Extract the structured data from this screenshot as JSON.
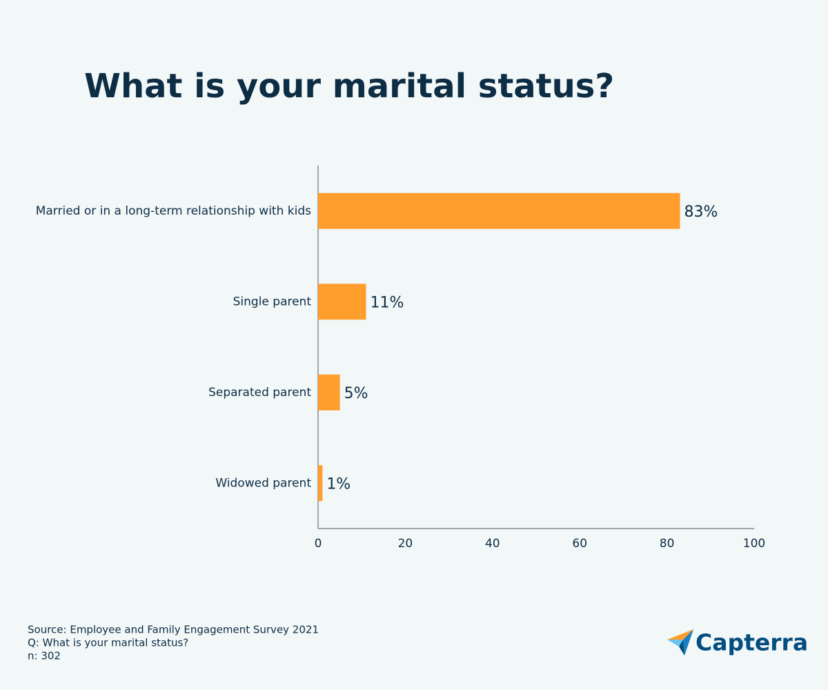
{
  "chart_data": {
    "type": "hbar",
    "title": "What is your marital status?",
    "categories": [
      "Married or in a long-term relationship with kids",
      "Single parent",
      "Separated parent",
      "Widowed parent"
    ],
    "values": [
      83,
      11,
      5,
      1
    ],
    "value_labels": [
      "83%",
      "11%",
      "5%",
      "1%"
    ],
    "color": "#ff9e2d",
    "xlim": [
      0,
      100
    ],
    "xticks": [
      0,
      20,
      40,
      60,
      80,
      100
    ],
    "grid": false,
    "notes": [
      "Source: Employee and Family Engagement Survey 2021",
      "Q: What is your marital status?",
      "n: 302"
    ]
  },
  "logo": "Capterra"
}
